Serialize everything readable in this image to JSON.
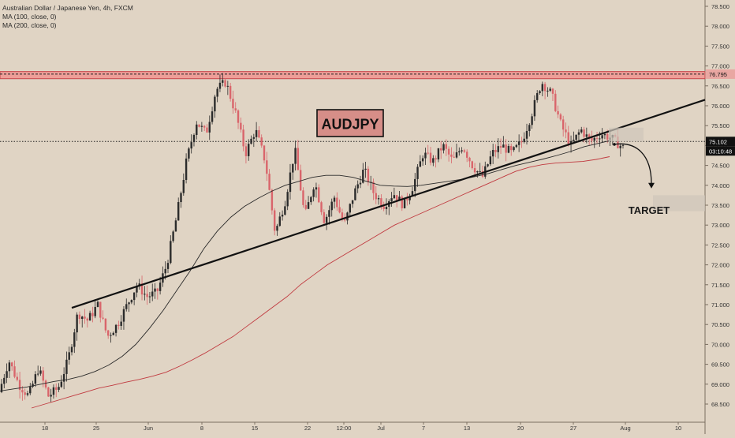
{
  "legend": {
    "title": "Australian Dollar / Japanese Yen, 4h, FXCM",
    "ma100": "MA (100, close, 0)",
    "ma200": "MA (200, close, 0)"
  },
  "annotations": {
    "symbol_box": "AUDJPY",
    "target_label": "TARGET"
  },
  "price_labels": {
    "resistance_price": "76.795",
    "current_price": "75.102",
    "countdown": "03:10:48"
  },
  "colors": {
    "background": "#e0d4c4",
    "up_candle": "#2b2b2b",
    "down_candle": "#d9656b",
    "ma100": "#2a2a2a",
    "ma200": "#c0393f",
    "zone_fill": "#ee9e98",
    "zone_border": "#c8454a",
    "symbol_box_fill": "#d68e88",
    "trendline": "#111111"
  },
  "chart_data": {
    "type": "candlestick",
    "title": "Australian Dollar / Japanese Yen, 4h, FXCM",
    "y_axis": {
      "ticks": [
        "68.500",
        "69.000",
        "69.500",
        "70.000",
        "70.500",
        "71.000",
        "71.500",
        "72.000",
        "72.500",
        "73.000",
        "73.500",
        "74.000",
        "74.500",
        "75.000",
        "75.500",
        "76.000",
        "76.500",
        "77.000",
        "77.500",
        "78.000",
        "78.500"
      ],
      "range": [
        68.38,
        78.7
      ],
      "position": "right"
    },
    "x_axis": {
      "tick_labels": [
        "18",
        "25",
        "Jun",
        "8",
        "15",
        "22",
        "12:00",
        "Jul",
        "7",
        "13",
        "20",
        "27",
        "Aug",
        "10"
      ]
    },
    "resistance_zone": {
      "low": 76.68,
      "high": 76.86,
      "label": "76.795"
    },
    "current_price": 75.102,
    "ma100_values": [
      68.83,
      68.88,
      68.93,
      69.0,
      69.07,
      69.12,
      69.2,
      69.32,
      69.48,
      69.7,
      70.0,
      70.4,
      70.85,
      71.35,
      71.85,
      72.4,
      72.85,
      73.2,
      73.47,
      73.67,
      73.85,
      74.0,
      74.1,
      74.2,
      74.25,
      74.25,
      74.2,
      74.1,
      74.0,
      73.98,
      73.97,
      74.0,
      74.05,
      74.1,
      74.15,
      74.22,
      74.3,
      74.4,
      74.5,
      74.58,
      74.66,
      74.75,
      74.85,
      74.97,
      75.05,
      75.13
    ],
    "ma200_values": [
      68.4,
      68.5,
      68.6,
      68.7,
      68.8,
      68.9,
      68.97,
      69.05,
      69.12,
      69.2,
      69.3,
      69.45,
      69.62,
      69.8,
      70.0,
      70.2,
      70.45,
      70.7,
      70.95,
      71.2,
      71.5,
      71.75,
      72.0,
      72.2,
      72.4,
      72.6,
      72.8,
      73.0,
      73.15,
      73.3,
      73.45,
      73.6,
      73.75,
      73.9,
      74.05,
      74.2,
      74.35,
      74.45,
      74.52,
      74.56,
      74.58,
      74.6,
      74.65,
      74.72
    ],
    "ohlc_waypoints": [
      68.8,
      69.6,
      69.0,
      68.7,
      69.4,
      68.7,
      68.9,
      69.6,
      70.8,
      70.6,
      71.0,
      70.2,
      70.5,
      71.0,
      71.5,
      71.2,
      71.3,
      72.0,
      73.2,
      74.6,
      75.6,
      75.3,
      76.4,
      76.6,
      75.8,
      74.8,
      75.4,
      74.6,
      72.8,
      73.6,
      74.9,
      73.2,
      74.1,
      73.1,
      73.7,
      73.0,
      73.8,
      74.4,
      73.8,
      73.5,
      73.8,
      73.5,
      74.0,
      74.8,
      74.6,
      75.0,
      74.6,
      75.0,
      74.5,
      74.2,
      74.8,
      75.0,
      74.8,
      75.1,
      75.8,
      76.6,
      76.3,
      75.5,
      75.0,
      75.4,
      75.1,
      75.3,
      75.2,
      75.0
    ],
    "trendline": [
      {
        "date_index": 27,
        "price": 70.92
      },
      {
        "date_index": 199,
        "price": 75.0
      },
      {
        "date_index": 212,
        "price": 75.45
      },
      {
        "date_index": 240,
        "price": 76.15
      }
    ],
    "target_arrow": {
      "from_price": 75.03,
      "to_price": 73.92,
      "label": "TARGET"
    }
  }
}
